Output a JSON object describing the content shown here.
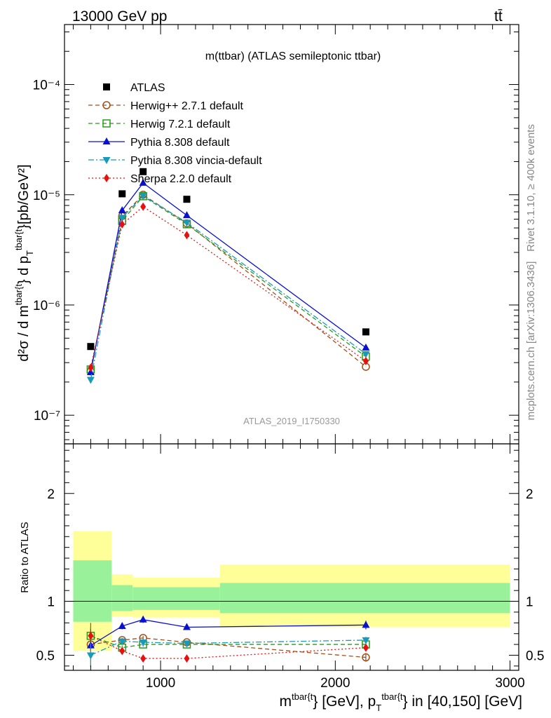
{
  "header": {
    "energy_label": "13000 GeV pp",
    "process_label": "tt̄"
  },
  "side_labels": {
    "rivet": "Rivet 3.1.10, ≥ 400k events",
    "source": "mcplots.cern.ch [arXiv:1306.3436]"
  },
  "chart_data": [
    {
      "type": "line",
      "title": "m(ttbar) (ATLAS semileptonic ttbar)",
      "watermark": "ATLAS_2019_I1750330",
      "ylabel_parts": {
        "a": "d²σ / d m",
        "sup1": "tbar{t",
        "b": "} d p",
        "sub2": "T",
        "sup2": "tbar{t",
        "c": "}[pb/GeV²]"
      },
      "xlabel_parts": {
        "a": "m",
        "sup1": "tbar{t",
        "b": "} [GeV], p",
        "sub2": "T",
        "sup2": "tbar{t",
        "c": "} in [40,150] [GeV]"
      },
      "yscale": "log",
      "ylim": [
        5.5e-08,
        0.00035
      ],
      "xlim": [
        450,
        3050
      ],
      "y_tick_labels": [
        "10⁻⁷",
        "10⁻⁶",
        "10⁻⁵",
        "10⁻⁴"
      ],
      "x": [
        600,
        780,
        900,
        1150,
        2175
      ],
      "data": {
        "name": "ATLAS",
        "values": [
          4.2e-07,
          1.02e-05,
          1.62e-05,
          9.1e-06,
          5.7e-07
        ],
        "errors": [
          2.5e-08,
          3e-07,
          4e-07,
          3e-07,
          2e-08
        ]
      },
      "series": [
        {
          "name": "Herwig++ 2.7.1 default",
          "color": "#a0501a",
          "marker": "open-circle",
          "dash": "6,4",
          "values": [
            2.5e-07,
            6.4e-06,
            1e-05,
            5.5e-06,
            2.75e-07
          ]
        },
        {
          "name": "Herwig 7.2.1 default",
          "color": "#2a9a1c",
          "marker": "open-square",
          "dash": "6,4",
          "values": [
            2.6e-07,
            5.8e-06,
            9.7e-06,
            5.4e-06,
            3.4e-07
          ]
        },
        {
          "name": "Pythia 8.308 default",
          "color": "#0a10d0",
          "marker": "triangle-up",
          "dash": "",
          "values": [
            2.45e-07,
            7.2e-06,
            1.28e-05,
            6.5e-06,
            4.1e-07
          ]
        },
        {
          "name": "Pythia 8.308 vincia-default",
          "color": "#1a9aba",
          "marker": "triangle-down",
          "dash": "8,3,2,3",
          "values": [
            2.1e-07,
            6.2e-06,
            9.8e-06,
            5.6e-06,
            3.6e-07
          ]
        },
        {
          "name": "Sherpa 2.2.0 default",
          "color": "#e8100e",
          "marker": "diamond",
          "dash": "2,3",
          "values": [
            2.7e-07,
            5.4e-06,
            7.8e-06,
            4.3e-06,
            3.1e-07
          ]
        }
      ],
      "legend_position": "top-left"
    },
    {
      "type": "line",
      "ylabel": "Ratio to ATLAS",
      "ylim": [
        0.36,
        2.46
      ],
      "y_tick_labels": [
        "0.5",
        "1",
        "2"
      ],
      "x_tick_labels": [
        "1000",
        "2000",
        "3000"
      ],
      "uncertainty_bands": [
        {
          "x_range": [
            500,
            720
          ],
          "inner": [
            0.81,
            1.38
          ],
          "outer": [
            0.54,
            1.65
          ]
        },
        {
          "x_range": [
            720,
            840
          ],
          "inner": [
            0.91,
            1.15
          ],
          "outer": [
            0.86,
            1.25
          ]
        },
        {
          "x_range": [
            840,
            1340
          ],
          "inner": [
            0.92,
            1.13
          ],
          "outer": [
            0.85,
            1.22
          ]
        },
        {
          "x_range": [
            1340,
            3000
          ],
          "inner": [
            0.89,
            1.17
          ],
          "outer": [
            0.76,
            1.34
          ]
        }
      ],
      "series": [
        {
          "name": "Herwig++ 2.7.1 default",
          "values": [
            0.6,
            0.64,
            0.66,
            0.62,
            0.48
          ],
          "errors": [
            0.2,
            0.02,
            0.02,
            0.01,
            0.04
          ]
        },
        {
          "name": "Herwig 7.2.1 default",
          "values": [
            0.68,
            0.57,
            0.6,
            0.6,
            0.6
          ],
          "errors": [
            0.08,
            0.02,
            0.02,
            0.01,
            0.03
          ]
        },
        {
          "name": "Pythia 8.308 default",
          "values": [
            0.59,
            0.77,
            0.83,
            0.76,
            0.78
          ],
          "errors": [
            0.05,
            0.03,
            0.03,
            0.02,
            0.04
          ]
        },
        {
          "name": "Pythia 8.308 vincia-default",
          "values": [
            0.5,
            0.63,
            0.62,
            0.61,
            0.64
          ],
          "errors": [
            0.11,
            0.02,
            0.02,
            0.01,
            0.03
          ]
        },
        {
          "name": "Sherpa 2.2.0 default",
          "values": [
            0.68,
            0.54,
            0.47,
            0.47,
            0.57
          ],
          "errors": [
            0.06,
            0.03,
            0.02,
            0.02,
            0.02
          ]
        }
      ]
    }
  ]
}
